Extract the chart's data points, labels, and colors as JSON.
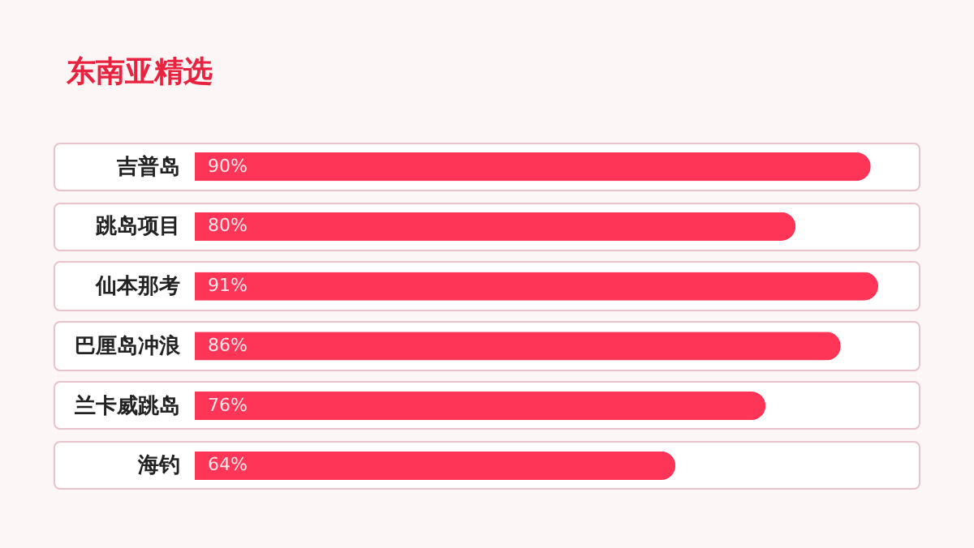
{
  "chart_data": {
    "type": "bar",
    "orientation": "horizontal",
    "title": "东南亚精选",
    "categories": [
      "吉普岛",
      "跳岛项目",
      "仙本那考",
      "巴厘岛冲浪",
      "兰卡威跳岛",
      "海钓"
    ],
    "values": [
      90,
      80,
      91,
      86,
      76,
      64
    ],
    "value_labels": [
      "90%",
      "80%",
      "91%",
      "86%",
      "76%",
      "64%"
    ],
    "color": "#fe3557"
  }
}
